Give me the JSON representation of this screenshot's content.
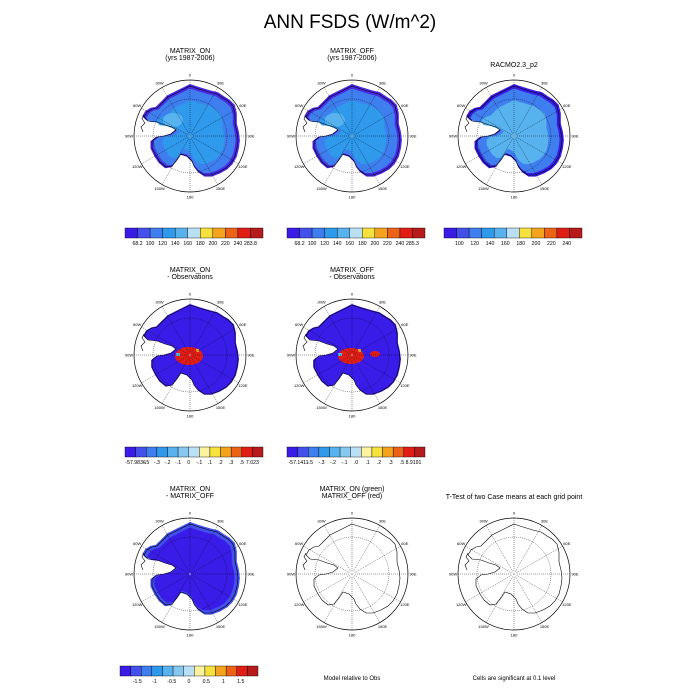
{
  "title": "ANN FSDS (W/m^2)",
  "panels": [
    {
      "title1": "MATRIX_ON",
      "title2": "(yrs 1987-2006)",
      "kind": "abs"
    },
    {
      "title1": "MATRIX_OFF",
      "title2": "(yrs 1987-2006)",
      "kind": "abs"
    },
    {
      "title1": "RACMO2.3_p2",
      "title2": "",
      "kind": "obs"
    },
    {
      "title1": "MATRIX_ON",
      "title2": "- Observations",
      "kind": "bias"
    },
    {
      "title1": "MATRIX_OFF",
      "title2": "- Observations",
      "kind": "bias2"
    },
    {
      "title1": "MATRIX_ON",
      "title2": "- MATRIX_OFF",
      "kind": "diff"
    },
    {
      "title1": "MATRIX_ON (green)",
      "title2": "MATRIX_OFF (red)",
      "kind": "blank"
    },
    {
      "title1": "T-Test of two Case means at each grid point",
      "title2": "",
      "kind": "blank"
    }
  ],
  "map_labels": {
    "lon": [
      "0",
      "30E",
      "60E",
      "90E",
      "120E",
      "150E",
      "180",
      "150W",
      "120W",
      "90W",
      "60W",
      "30W"
    ]
  },
  "colorbars": [
    {
      "colors": [
        "#3a1ce8",
        "#4450ec",
        "#3e7eef",
        "#2f99ec",
        "#57b2ee",
        "#b9e0f5",
        "#f7e23d",
        "#f3a41c",
        "#ec6318",
        "#e11e16",
        "#b71a1a"
      ],
      "labels": [
        "68.2",
        "100",
        "120",
        "140",
        "160",
        "180",
        "200",
        "220",
        "240",
        "283.8"
      ]
    },
    {
      "colors": [
        "#3a1ce8",
        "#4450ec",
        "#3e7eef",
        "#2f99ec",
        "#57b2ee",
        "#b9e0f5",
        "#f7e23d",
        "#f3a41c",
        "#ec6318",
        "#e11e16",
        "#b71a1a"
      ],
      "labels": [
        "68.2",
        "100",
        "120",
        "140",
        "160",
        "180",
        "200",
        "220",
        "240",
        "285.3"
      ]
    },
    {
      "colors": [
        "#3a1ce8",
        "#4450ec",
        "#3e7eef",
        "#2f99ec",
        "#57b2ee",
        "#b9e0f5",
        "#f7e23d",
        "#f3a41c",
        "#ec6318",
        "#e11e16",
        "#b71a1a"
      ],
      "labels": [
        "100",
        "120",
        "140",
        "160",
        "180",
        "200",
        "220",
        "240"
      ]
    },
    {
      "colors": [
        "#3a1ce8",
        "#4450ec",
        "#3e7eef",
        "#2f99ec",
        "#57b2ee",
        "#86c8f0",
        "#b9e0f5",
        "#fbf3a0",
        "#f7e23d",
        "#f3a41c",
        "#ec6318",
        "#e11e16",
        "#b71a1a"
      ],
      "labels": [
        "-57.9836",
        "-.5",
        "-.3",
        "-.2",
        "-.1",
        "0",
        "-.1",
        ".1",
        ".2",
        ".3",
        ".5",
        "7.023"
      ]
    },
    {
      "colors": [
        "#3a1ce8",
        "#4450ec",
        "#3e7eef",
        "#2f99ec",
        "#57b2ee",
        "#86c8f0",
        "#b9e0f5",
        "#fbf3a0",
        "#f7e23d",
        "#f3a41c",
        "#ec6318",
        "#e11e16",
        "#b71a1a"
      ],
      "labels": [
        "-57.1411",
        "-.5",
        "-.3",
        "-.2",
        "-.1",
        ".0",
        ".1",
        ".2",
        ".3",
        ".5",
        "8.9191"
      ]
    },
    {
      "colors": [
        "#3a1ce8",
        "#4450ec",
        "#3e7eef",
        "#2f99ec",
        "#57b2ee",
        "#86c8f0",
        "#b9e0f5",
        "#fbf3a0",
        "#f7e23d",
        "#f3a41c",
        "#ec6318",
        "#e11e16",
        "#b71a1a"
      ],
      "labels": [
        "-1.5",
        "-1",
        "-0.5",
        "0",
        "0.5",
        "1",
        "1.5"
      ]
    }
  ],
  "footers": {
    "model_rel": "Model relative to Obs",
    "signif": "Cells are significant at 0.1 level"
  }
}
